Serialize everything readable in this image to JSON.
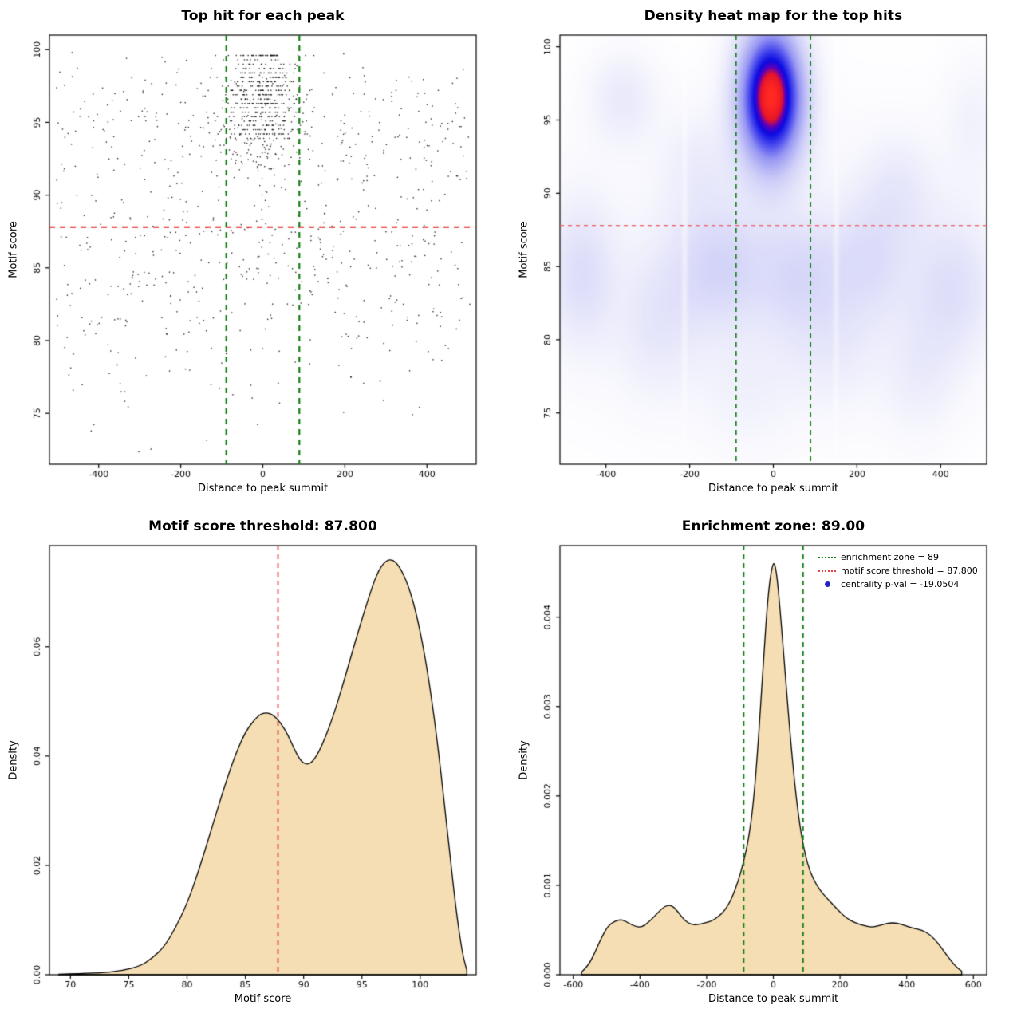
{
  "page": {
    "background": "#ffffff"
  },
  "chart_data": [
    {
      "type": "scatter",
      "title": "Top hit for each peak",
      "xlabel": "Distance to peak summit",
      "ylabel": "Motif score",
      "xlim": [
        -520,
        520
      ],
      "ylim": [
        71.5,
        101
      ],
      "xticks": [
        -400,
        -200,
        0,
        200,
        400
      ],
      "xtick_labels": [
        "-400",
        "-200",
        "0",
        "200",
        "400"
      ],
      "yticks": [
        75,
        80,
        85,
        90,
        95,
        100
      ],
      "ytick_labels": [
        "75",
        "80",
        "85",
        "90",
        "95",
        "100"
      ],
      "point_color": "rgba(0,0,0,0.85)",
      "points": {
        "seed": 1337,
        "background": {
          "n": 760,
          "x_range": [
            -505,
            505
          ],
          "clip": [
            72.2,
            99.8
          ],
          "components": [
            {
              "w": 0.38,
              "mean": 85.5,
              "sd": 3.0
            },
            {
              "w": 0.34,
              "mean": 93.8,
              "sd": 2.4
            },
            {
              "w": 0.18,
              "mean": 80.0,
              "sd": 3.2
            },
            {
              "w": 0.1,
              "mean": 96.5,
              "sd": 1.6
            }
          ]
        },
        "central": {
          "n": 520,
          "x_sd": 52,
          "x_clip": [
            -170,
            170
          ],
          "y_mean": 96.3,
          "y_sd": 2.2,
          "y_max": 99.6,
          "quant_above": 93.8,
          "quant_step": 0.3
        }
      },
      "lines": [
        {
          "orient": "h",
          "at": 87.8,
          "color": "#e83030",
          "width": 2,
          "dash": [
            7,
            6
          ]
        },
        {
          "orient": "v",
          "at": -89,
          "color": "#0f7d0f",
          "width": 2.2,
          "dash": [
            7,
            6
          ]
        },
        {
          "orient": "v",
          "at": 89,
          "color": "#0f7d0f",
          "width": 2.2,
          "dash": [
            7,
            6
          ]
        }
      ]
    },
    {
      "type": "heatmap",
      "title": "Density heat map for the top hits",
      "xlabel": "Distance to peak summit",
      "ylabel": "Motif score",
      "xlim": [
        -510,
        510
      ],
      "ylim": [
        71.5,
        100.8
      ],
      "xticks": [
        -400,
        -200,
        0,
        200,
        400
      ],
      "xtick_labels": [
        "-400",
        "-200",
        "0",
        "200",
        "400"
      ],
      "yticks": [
        75,
        80,
        85,
        90,
        95,
        100
      ],
      "ytick_labels": [
        "75",
        "80",
        "85",
        "90",
        "95",
        "100"
      ],
      "colormap": [
        {
          "t": 0.0,
          "c": [
            255,
            255,
            255
          ]
        },
        {
          "t": 0.08,
          "c": [
            240,
            240,
            252
          ]
        },
        {
          "t": 0.25,
          "c": [
            205,
            205,
            248
          ]
        },
        {
          "t": 0.45,
          "c": [
            150,
            150,
            243
          ]
        },
        {
          "t": 0.62,
          "c": [
            70,
            70,
            238
          ]
        },
        {
          "t": 0.75,
          "c": [
            10,
            10,
            225
          ]
        },
        {
          "t": 0.83,
          "c": [
            90,
            0,
            190
          ]
        },
        {
          "t": 0.9,
          "c": [
            230,
            20,
            40
          ]
        },
        {
          "t": 1.0,
          "c": [
            255,
            40,
            35
          ]
        }
      ],
      "kernels": [
        {
          "x": -5,
          "y": 96.6,
          "sx": 52,
          "sy": 3.2,
          "a": 1.0
        },
        {
          "x": -360,
          "y": 96.5,
          "sx": 55,
          "sy": 2.2,
          "a": 0.1
        },
        {
          "x": -460,
          "y": 84.5,
          "sx": 55,
          "sy": 3.5,
          "a": 0.14
        },
        {
          "x": -130,
          "y": 85.0,
          "sx": 80,
          "sy": 3.0,
          "a": 0.16
        },
        {
          "x": 60,
          "y": 84.5,
          "sx": 70,
          "sy": 2.8,
          "a": 0.13
        },
        {
          "x": 230,
          "y": 85.5,
          "sx": 70,
          "sy": 3.0,
          "a": 0.12
        },
        {
          "x": 430,
          "y": 83.5,
          "sx": 70,
          "sy": 3.5,
          "a": 0.13
        },
        {
          "x": 300,
          "y": 90.5,
          "sx": 60,
          "sy": 2.5,
          "a": 0.08
        },
        {
          "x": -280,
          "y": 81.0,
          "sx": 70,
          "sy": 3.5,
          "a": 0.09
        },
        {
          "x": 140,
          "y": 79.5,
          "sx": 80,
          "sy": 3.0,
          "a": 0.07
        },
        {
          "x": 350,
          "y": 77.5,
          "sx": 60,
          "sy": 3.0,
          "a": 0.07
        },
        {
          "x": -60,
          "y": 76.5,
          "sx": 80,
          "sy": 3.0,
          "a": 0.05
        },
        {
          "x": 0,
          "y": 85.0,
          "sx": 430,
          "sy": 7.5,
          "a": 0.05
        },
        {
          "x": -180,
          "y": 92.0,
          "sx": 60,
          "sy": 2.5,
          "a": 0.07
        },
        {
          "x": 480,
          "y": 95.0,
          "sx": 50,
          "sy": 3.0,
          "a": 0.06
        }
      ],
      "streaks": [
        {
          "x": -212,
          "sd": 5,
          "strength": 0.5
        },
        {
          "x": 150,
          "sd": 5,
          "strength": 0.45
        }
      ],
      "lines": [
        {
          "orient": "h",
          "at": 87.8,
          "color": "#f06060",
          "width": 1.3,
          "dash": [
            5,
            5
          ]
        },
        {
          "orient": "v",
          "at": -89,
          "color": "#0f7d0f",
          "width": 1.6,
          "dash": [
            6,
            5
          ]
        },
        {
          "orient": "v",
          "at": 89,
          "color": "#0f7d0f",
          "width": 1.6,
          "dash": [
            6,
            5
          ]
        }
      ]
    },
    {
      "type": "area",
      "title": "Motif score threshold: 87.800",
      "xlabel": "Motif score",
      "ylabel": "Density",
      "xlim": [
        68.2,
        104.8
      ],
      "ylim": [
        0,
        0.0785
      ],
      "xticks": [
        70,
        75,
        80,
        85,
        90,
        95,
        100
      ],
      "xtick_labels": [
        "70",
        "75",
        "80",
        "85",
        "90",
        "95",
        "100"
      ],
      "yticks": [
        0,
        0.02,
        0.04,
        0.06
      ],
      "ytick_labels": [
        "0.00",
        "0.02",
        "0.04",
        "0.06"
      ],
      "fill": "#f5deb3",
      "stroke": "#000000",
      "curve": [
        [
          69,
          0.0001
        ],
        [
          71,
          0.0002
        ],
        [
          73,
          0.0004
        ],
        [
          74.5,
          0.0008
        ],
        [
          76,
          0.0016
        ],
        [
          77,
          0.003
        ],
        [
          78,
          0.005
        ],
        [
          79,
          0.0085
        ],
        [
          80,
          0.013
        ],
        [
          81,
          0.019
        ],
        [
          82,
          0.026
        ],
        [
          83,
          0.033
        ],
        [
          84,
          0.0395
        ],
        [
          85,
          0.0445
        ],
        [
          86,
          0.0472
        ],
        [
          86.6,
          0.048
        ],
        [
          87.3,
          0.0477
        ],
        [
          88,
          0.0462
        ],
        [
          88.7,
          0.0437
        ],
        [
          89.3,
          0.0408
        ],
        [
          89.8,
          0.039
        ],
        [
          90.3,
          0.0384
        ],
        [
          90.8,
          0.039
        ],
        [
          91.5,
          0.0415
        ],
        [
          92.5,
          0.047
        ],
        [
          93.5,
          0.054
        ],
        [
          94.5,
          0.0615
        ],
        [
          95.5,
          0.0685
        ],
        [
          96.3,
          0.0735
        ],
        [
          97,
          0.0757
        ],
        [
          97.6,
          0.076
        ],
        [
          98.2,
          0.0748
        ],
        [
          99,
          0.0712
        ],
        [
          99.8,
          0.065
        ],
        [
          100.6,
          0.056
        ],
        [
          101.4,
          0.044
        ],
        [
          102.2,
          0.029
        ],
        [
          103,
          0.013
        ],
        [
          103.6,
          0.004
        ],
        [
          104,
          0.0008
        ]
      ],
      "lines": [
        {
          "orient": "v",
          "at": 87.8,
          "color": "#e84040",
          "width": 1.8,
          "dash": [
            6,
            5
          ]
        }
      ]
    },
    {
      "type": "area",
      "title": "Enrichment zone: 89.00",
      "xlabel": "Distance to peak summit",
      "ylabel": "Density",
      "xlim": [
        -640,
        640
      ],
      "ylim": [
        0,
        0.0048
      ],
      "xticks": [
        -600,
        -400,
        -200,
        0,
        200,
        400,
        600
      ],
      "xtick_labels": [
        "-600",
        "-400",
        "-200",
        "0",
        "200",
        "400",
        "600"
      ],
      "yticks": [
        0,
        0.001,
        0.002,
        0.003,
        0.004
      ],
      "ytick_labels": [
        "0.000",
        "0.001",
        "0.002",
        "0.003",
        "0.004"
      ],
      "fill": "#f5deb3",
      "stroke": "#000000",
      "curve": [
        [
          -575,
          3e-05
        ],
        [
          -555,
          0.0001
        ],
        [
          -535,
          0.00025
        ],
        [
          -515,
          0.00042
        ],
        [
          -495,
          0.00055
        ],
        [
          -475,
          0.0006
        ],
        [
          -455,
          0.00062
        ],
        [
          -435,
          0.00058
        ],
        [
          -415,
          0.00054
        ],
        [
          -395,
          0.00053
        ],
        [
          -370,
          0.0006
        ],
        [
          -345,
          0.0007
        ],
        [
          -325,
          0.00077
        ],
        [
          -305,
          0.00078
        ],
        [
          -285,
          0.0007
        ],
        [
          -265,
          0.0006
        ],
        [
          -245,
          0.00056
        ],
        [
          -225,
          0.00056
        ],
        [
          -205,
          0.00058
        ],
        [
          -185,
          0.0006
        ],
        [
          -165,
          0.00065
        ],
        [
          -145,
          0.00072
        ],
        [
          -125,
          0.00085
        ],
        [
          -105,
          0.00105
        ],
        [
          -90,
          0.00125
        ],
        [
          -75,
          0.0015
        ],
        [
          -60,
          0.0019
        ],
        [
          -45,
          0.0026
        ],
        [
          -30,
          0.0035
        ],
        [
          -15,
          0.0043
        ],
        [
          0,
          0.00465
        ],
        [
          10,
          0.0045
        ],
        [
          20,
          0.0041
        ],
        [
          35,
          0.0034
        ],
        [
          50,
          0.0027
        ],
        [
          65,
          0.0021
        ],
        [
          80,
          0.00165
        ],
        [
          95,
          0.00135
        ],
        [
          110,
          0.00115
        ],
        [
          130,
          0.001
        ],
        [
          150,
          0.0009
        ],
        [
          170,
          0.00082
        ],
        [
          195,
          0.00072
        ],
        [
          220,
          0.00063
        ],
        [
          245,
          0.00058
        ],
        [
          270,
          0.00055
        ],
        [
          295,
          0.00053
        ],
        [
          320,
          0.00055
        ],
        [
          345,
          0.00058
        ],
        [
          370,
          0.00058
        ],
        [
          395,
          0.00055
        ],
        [
          420,
          0.00052
        ],
        [
          445,
          0.0005
        ],
        [
          470,
          0.00045
        ],
        [
          495,
          0.00035
        ],
        [
          520,
          0.00022
        ],
        [
          545,
          0.0001
        ],
        [
          565,
          4e-05
        ]
      ],
      "lines": [
        {
          "orient": "v",
          "at": -89,
          "color": "#0f7d0f",
          "width": 2,
          "dash": [
            6,
            5
          ]
        },
        {
          "orient": "v",
          "at": 89,
          "color": "#0f7d0f",
          "width": 2,
          "dash": [
            6,
            5
          ]
        }
      ],
      "legend": {
        "items": [
          {
            "marker": "dotted-line",
            "color": "#0f7d0f",
            "label": "enrichment zone = 89"
          },
          {
            "marker": "dotted-line",
            "color": "#e84040",
            "label": "motif score threshold = 87.800"
          },
          {
            "marker": "dot",
            "color": "#2222cc",
            "label": "centrality p-val = -19.0504"
          }
        ]
      }
    }
  ]
}
